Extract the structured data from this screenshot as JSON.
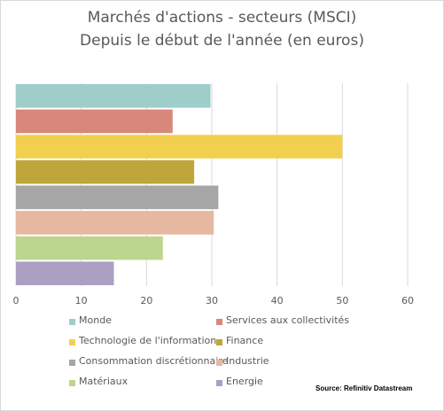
{
  "chart_data": {
    "type": "bar",
    "orientation": "horizontal",
    "title": "Marchés d'actions - secteurs (MSCI)",
    "subtitle": "Depuis le début de l'année (en euros)",
    "categories": [
      "Monde",
      "Services aux collectivités",
      "Technologie de l'information",
      "Finance",
      "Consommation discrétionnaire",
      "Industrie",
      "Matériaux",
      "Energie"
    ],
    "values": [
      29.8,
      24.0,
      50.0,
      27.3,
      31.0,
      30.3,
      22.5,
      15.0
    ],
    "colors": [
      "#9fcdca",
      "#d9877a",
      "#f2cf4e",
      "#bfa63a",
      "#a6a6a6",
      "#e6b8a2",
      "#bcd58f",
      "#ad9fc2"
    ],
    "xlim": [
      0,
      60
    ],
    "xticks": [
      "0",
      "10",
      "20",
      "30",
      "40",
      "50",
      "60"
    ],
    "grid": true,
    "legend_position": "bottom"
  },
  "source": "Source: Refinitiv Datastream"
}
